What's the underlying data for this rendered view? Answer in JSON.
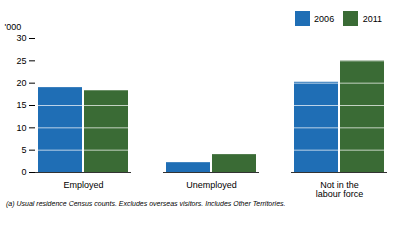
{
  "chart_data": {
    "type": "bar",
    "categories": [
      "Employed",
      "Unemployed",
      "Not in the\nlabour force"
    ],
    "series": [
      {
        "name": "2006",
        "color": "#1f6eb5",
        "values": [
          19.0,
          2.2,
          20.2
        ]
      },
      {
        "name": "2011",
        "color": "#3a6b35",
        "values": [
          18.3,
          4.0,
          25.0
        ]
      }
    ],
    "ylabel": "'000",
    "ylim": [
      0,
      30
    ],
    "yticks": [
      0,
      5,
      10,
      15,
      20,
      25,
      30
    ],
    "legend": "upper right",
    "annotations": [
      "(a) Usual residence Census counts.  Excludes overseas visitors.  Includes Other Territories."
    ]
  }
}
